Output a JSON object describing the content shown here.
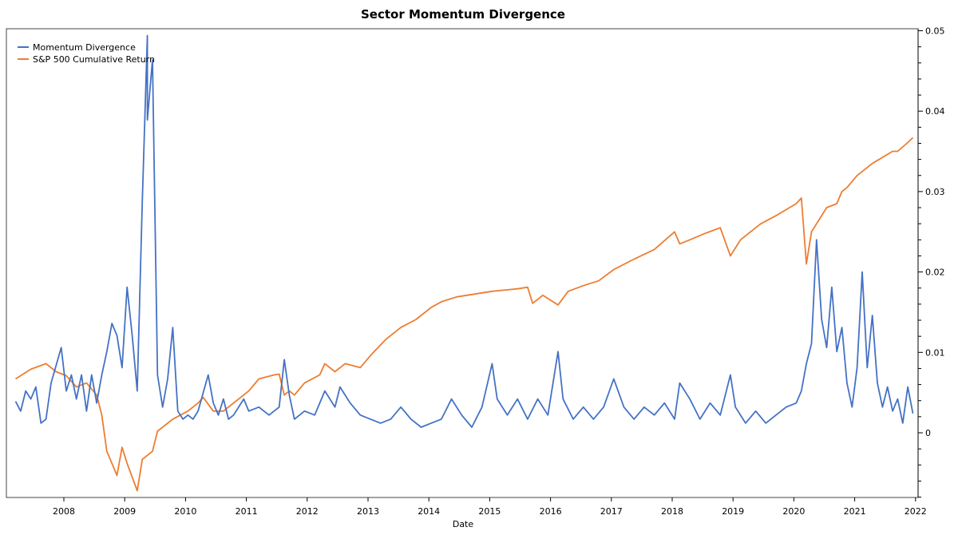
{
  "chart_data": {
    "type": "line",
    "title": "Sector Momentum Divergence",
    "xlabel": "Date",
    "ylabel": "",
    "y_axis_side": "right",
    "ylim": [
      -0.008,
      0.0503
    ],
    "y_ticks": [
      "0.05",
      "0.04",
      "0.03",
      "0.02",
      "0.01",
      "0"
    ],
    "x_ticks": [
      "2008",
      "2009",
      "2010",
      "2011",
      "2012",
      "2013",
      "2014",
      "2015",
      "2016",
      "2017",
      "2018",
      "2019",
      "2020",
      "2021",
      "2022"
    ],
    "grid": false,
    "legend_position": "top-left",
    "series": [
      {
        "name": "Momentum Divergence",
        "color": "#4472c4",
        "points": [
          [
            "2007-03",
            0.0039
          ],
          [
            "2007-04",
            0.0027
          ],
          [
            "2007-05",
            0.0052
          ],
          [
            "2007-06",
            0.0042
          ],
          [
            "2007-07",
            0.0057
          ],
          [
            "2007-08",
            0.0012
          ],
          [
            "2007-09",
            0.0017
          ],
          [
            "2007-10",
            0.0062
          ],
          [
            "2007-12",
            0.0106
          ],
          [
            "2008-01",
            0.0052
          ],
          [
            "2008-02",
            0.0072
          ],
          [
            "2008-03",
            0.0042
          ],
          [
            "2008-04",
            0.0072
          ],
          [
            "2008-05",
            0.0027
          ],
          [
            "2008-06",
            0.0072
          ],
          [
            "2008-07",
            0.0037
          ],
          [
            "2008-08",
            0.0072
          ],
          [
            "2008-09",
            0.0101
          ],
          [
            "2008-10",
            0.0136
          ],
          [
            "2008-11",
            0.0121
          ],
          [
            "2008-12",
            0.0081
          ],
          [
            "2009-01",
            0.0181
          ],
          [
            "2009-02",
            0.0121
          ],
          [
            "2009-03",
            0.0052
          ],
          [
            "2009-04",
            0.029
          ],
          [
            "2009-05",
            0.0494
          ],
          [
            "2009-05",
            0.0389
          ],
          [
            "2009-06",
            0.0464
          ],
          [
            "2009-07",
            0.0072
          ],
          [
            "2009-08",
            0.0032
          ],
          [
            "2009-09",
            0.0067
          ],
          [
            "2009-10",
            0.0131
          ],
          [
            "2009-11",
            0.0027
          ],
          [
            "2009-12",
            0.0017
          ],
          [
            "2010-01",
            0.0022
          ],
          [
            "2010-02",
            0.0017
          ],
          [
            "2010-03",
            0.0027
          ],
          [
            "2010-05",
            0.0072
          ],
          [
            "2010-06",
            0.0037
          ],
          [
            "2010-07",
            0.0022
          ],
          [
            "2010-08",
            0.0042
          ],
          [
            "2010-09",
            0.0017
          ],
          [
            "2010-10",
            0.0022
          ],
          [
            "2010-12",
            0.0042
          ],
          [
            "2011-01",
            0.0027
          ],
          [
            "2011-03",
            0.0032
          ],
          [
            "2011-05",
            0.0022
          ],
          [
            "2011-07",
            0.0032
          ],
          [
            "2011-08",
            0.0091
          ],
          [
            "2011-09",
            0.0047
          ],
          [
            "2011-10",
            0.0017
          ],
          [
            "2011-12",
            0.0027
          ],
          [
            "2012-02",
            0.0022
          ],
          [
            "2012-04",
            0.0052
          ],
          [
            "2012-06",
            0.0032
          ],
          [
            "2012-07",
            0.0057
          ],
          [
            "2012-09",
            0.0037
          ],
          [
            "2012-11",
            0.0022
          ],
          [
            "2013-01",
            0.0017
          ],
          [
            "2013-03",
            0.0012
          ],
          [
            "2013-05",
            0.0017
          ],
          [
            "2013-07",
            0.0032
          ],
          [
            "2013-09",
            0.0017
          ],
          [
            "2013-11",
            0.0007
          ],
          [
            "2014-01",
            0.0012
          ],
          [
            "2014-03",
            0.0017
          ],
          [
            "2014-05",
            0.0042
          ],
          [
            "2014-07",
            0.0022
          ],
          [
            "2014-09",
            0.0007
          ],
          [
            "2014-11",
            0.0032
          ],
          [
            "2015-01",
            0.0086
          ],
          [
            "2015-02",
            0.0042
          ],
          [
            "2015-04",
            0.0022
          ],
          [
            "2015-06",
            0.0042
          ],
          [
            "2015-08",
            0.0017
          ],
          [
            "2015-10",
            0.0042
          ],
          [
            "2015-12",
            0.0022
          ],
          [
            "2016-02",
            0.0101
          ],
          [
            "2016-03",
            0.0042
          ],
          [
            "2016-05",
            0.0017
          ],
          [
            "2016-07",
            0.0032
          ],
          [
            "2016-09",
            0.0017
          ],
          [
            "2016-11",
            0.0032
          ],
          [
            "2017-01",
            0.0067
          ],
          [
            "2017-03",
            0.0032
          ],
          [
            "2017-05",
            0.0017
          ],
          [
            "2017-07",
            0.0032
          ],
          [
            "2017-09",
            0.0022
          ],
          [
            "2017-11",
            0.0037
          ],
          [
            "2018-01",
            0.0017
          ],
          [
            "2018-02",
            0.0062
          ],
          [
            "2018-04",
            0.0042
          ],
          [
            "2018-06",
            0.0017
          ],
          [
            "2018-08",
            0.0037
          ],
          [
            "2018-10",
            0.0022
          ],
          [
            "2018-12",
            0.0072
          ],
          [
            "2019-01",
            0.0032
          ],
          [
            "2019-03",
            0.0012
          ],
          [
            "2019-05",
            0.0027
          ],
          [
            "2019-07",
            0.0012
          ],
          [
            "2019-09",
            0.0022
          ],
          [
            "2019-11",
            0.0032
          ],
          [
            "2020-01",
            0.0037
          ],
          [
            "2020-02",
            0.0052
          ],
          [
            "2020-03",
            0.0086
          ],
          [
            "2020-04",
            0.0111
          ],
          [
            "2020-05",
            0.024
          ],
          [
            "2020-06",
            0.0141
          ],
          [
            "2020-07",
            0.0106
          ],
          [
            "2020-08",
            0.0181
          ],
          [
            "2020-09",
            0.0101
          ],
          [
            "2020-10",
            0.0131
          ],
          [
            "2020-11",
            0.0062
          ],
          [
            "2020-12",
            0.0032
          ],
          [
            "2021-01",
            0.0081
          ],
          [
            "2021-02",
            0.02
          ],
          [
            "2021-03",
            0.0081
          ],
          [
            "2021-04",
            0.0146
          ],
          [
            "2021-05",
            0.0062
          ],
          [
            "2021-06",
            0.0032
          ],
          [
            "2021-07",
            0.0057
          ],
          [
            "2021-08",
            0.0027
          ],
          [
            "2021-09",
            0.0042
          ],
          [
            "2021-10",
            0.0012
          ],
          [
            "2021-11",
            0.0057
          ],
          [
            "2021-12",
            0.0024
          ]
        ]
      },
      {
        "name": "S&P 500 Cumulative Return",
        "color": "#ed7d31",
        "points": [
          [
            "2007-03",
            0.0067
          ],
          [
            "2007-06",
            0.0079
          ],
          [
            "2007-09",
            0.0086
          ],
          [
            "2007-11",
            0.0076
          ],
          [
            "2008-01",
            0.0071
          ],
          [
            "2008-03",
            0.0057
          ],
          [
            "2008-05",
            0.0062
          ],
          [
            "2008-07",
            0.0047
          ],
          [
            "2008-08",
            0.0022
          ],
          [
            "2008-09",
            -0.0023
          ],
          [
            "2008-10",
            -0.0038
          ],
          [
            "2008-11",
            -0.0053
          ],
          [
            "2008-12",
            -0.0018
          ],
          [
            "2009-01",
            -0.0038
          ],
          [
            "2009-03",
            -0.0072
          ],
          [
            "2009-04",
            -0.0033
          ],
          [
            "2009-06",
            -0.0023
          ],
          [
            "2009-07",
            0.0002
          ],
          [
            "2009-10",
            0.0017
          ],
          [
            "2010-01",
            0.0027
          ],
          [
            "2010-03",
            0.0037
          ],
          [
            "2010-04",
            0.0044
          ],
          [
            "2010-06",
            0.0027
          ],
          [
            "2010-08",
            0.0027
          ],
          [
            "2010-10",
            0.0037
          ],
          [
            "2011-01",
            0.0052
          ],
          [
            "2011-03",
            0.0067
          ],
          [
            "2011-06",
            0.0072
          ],
          [
            "2011-07",
            0.0073
          ],
          [
            "2011-08",
            0.0047
          ],
          [
            "2011-09",
            0.0052
          ],
          [
            "2011-10",
            0.0047
          ],
          [
            "2011-12",
            0.0062
          ],
          [
            "2012-03",
            0.0072
          ],
          [
            "2012-04",
            0.0086
          ],
          [
            "2012-06",
            0.0076
          ],
          [
            "2012-08",
            0.0086
          ],
          [
            "2012-11",
            0.0081
          ],
          [
            "2013-01",
            0.0096
          ],
          [
            "2013-04",
            0.0116
          ],
          [
            "2013-07",
            0.0131
          ],
          [
            "2013-10",
            0.0141
          ],
          [
            "2014-01",
            0.0156
          ],
          [
            "2014-03",
            0.0163
          ],
          [
            "2014-06",
            0.0169
          ],
          [
            "2014-10",
            0.0173
          ],
          [
            "2015-01",
            0.0176
          ],
          [
            "2015-06",
            0.0179
          ],
          [
            "2015-08",
            0.0181
          ],
          [
            "2015-09",
            0.0161
          ],
          [
            "2015-11",
            0.0171
          ],
          [
            "2016-02",
            0.0159
          ],
          [
            "2016-04",
            0.0176
          ],
          [
            "2016-07",
            0.0183
          ],
          [
            "2016-10",
            0.0189
          ],
          [
            "2017-01",
            0.0203
          ],
          [
            "2017-05",
            0.0216
          ],
          [
            "2017-09",
            0.0228
          ],
          [
            "2018-01",
            0.025
          ],
          [
            "2018-02",
            0.0235
          ],
          [
            "2018-04",
            0.024
          ],
          [
            "2018-07",
            0.0248
          ],
          [
            "2018-10",
            0.0255
          ],
          [
            "2018-12",
            0.022
          ],
          [
            "2019-02",
            0.024
          ],
          [
            "2019-05",
            0.0255
          ],
          [
            "2019-06",
            0.026
          ],
          [
            "2019-09",
            0.027
          ],
          [
            "2020-01",
            0.0285
          ],
          [
            "2020-02",
            0.0292
          ],
          [
            "2020-03",
            0.021
          ],
          [
            "2020-04",
            0.025
          ],
          [
            "2020-07",
            0.028
          ],
          [
            "2020-09",
            0.0285
          ],
          [
            "2020-10",
            0.03
          ],
          [
            "2020-11",
            0.0305
          ],
          [
            "2021-01",
            0.032
          ],
          [
            "2021-04",
            0.0335
          ],
          [
            "2021-08",
            0.035
          ],
          [
            "2021-09",
            0.035
          ],
          [
            "2021-11",
            0.0361
          ],
          [
            "2021-12",
            0.0367
          ]
        ]
      }
    ]
  }
}
